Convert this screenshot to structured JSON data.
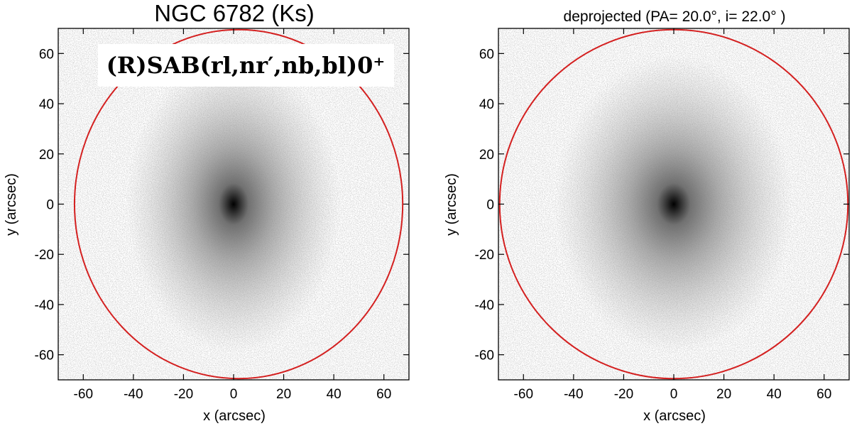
{
  "panels": [
    {
      "id": "left",
      "title": "NGC 6782   (Ks)",
      "classification": "(R)SAB(rl,nr′,nb,bl)0⁺",
      "xlabel": "x (arcsec)",
      "ylabel": "y (arcsec)",
      "xlim": [
        -70,
        70
      ],
      "ylim": [
        -70,
        70
      ],
      "xticks": [
        -60,
        -40,
        -20,
        0,
        20,
        40,
        60
      ],
      "yticks": [
        -60,
        -40,
        -20,
        0,
        20,
        40,
        60
      ],
      "ellipse": {
        "center": [
          2,
          0
        ],
        "semi_x": 65.5,
        "semi_y": 69.5
      },
      "galaxy_axis_ratio": 0.72
    },
    {
      "id": "right",
      "title": "deprojected  (PA= 20.0°, i= 22.0° )",
      "xlabel": "x (arcsec)",
      "ylabel": "y (arcsec)",
      "xlim": [
        -70,
        70
      ],
      "ylim": [
        -70,
        70
      ],
      "xticks": [
        -60,
        -40,
        -20,
        0,
        20,
        40,
        60
      ],
      "yticks": [
        -60,
        -40,
        -20,
        0,
        20,
        40,
        60
      ],
      "ellipse": {
        "center": [
          0,
          0
        ],
        "semi_x": 69.5,
        "semi_y": 69.5
      },
      "galaxy_axis_ratio": 0.8
    }
  ],
  "colors": {
    "ellipse": "#d42020",
    "frame": "#000000",
    "noise": "#b4b4b4",
    "galaxy_core": "#000000"
  }
}
